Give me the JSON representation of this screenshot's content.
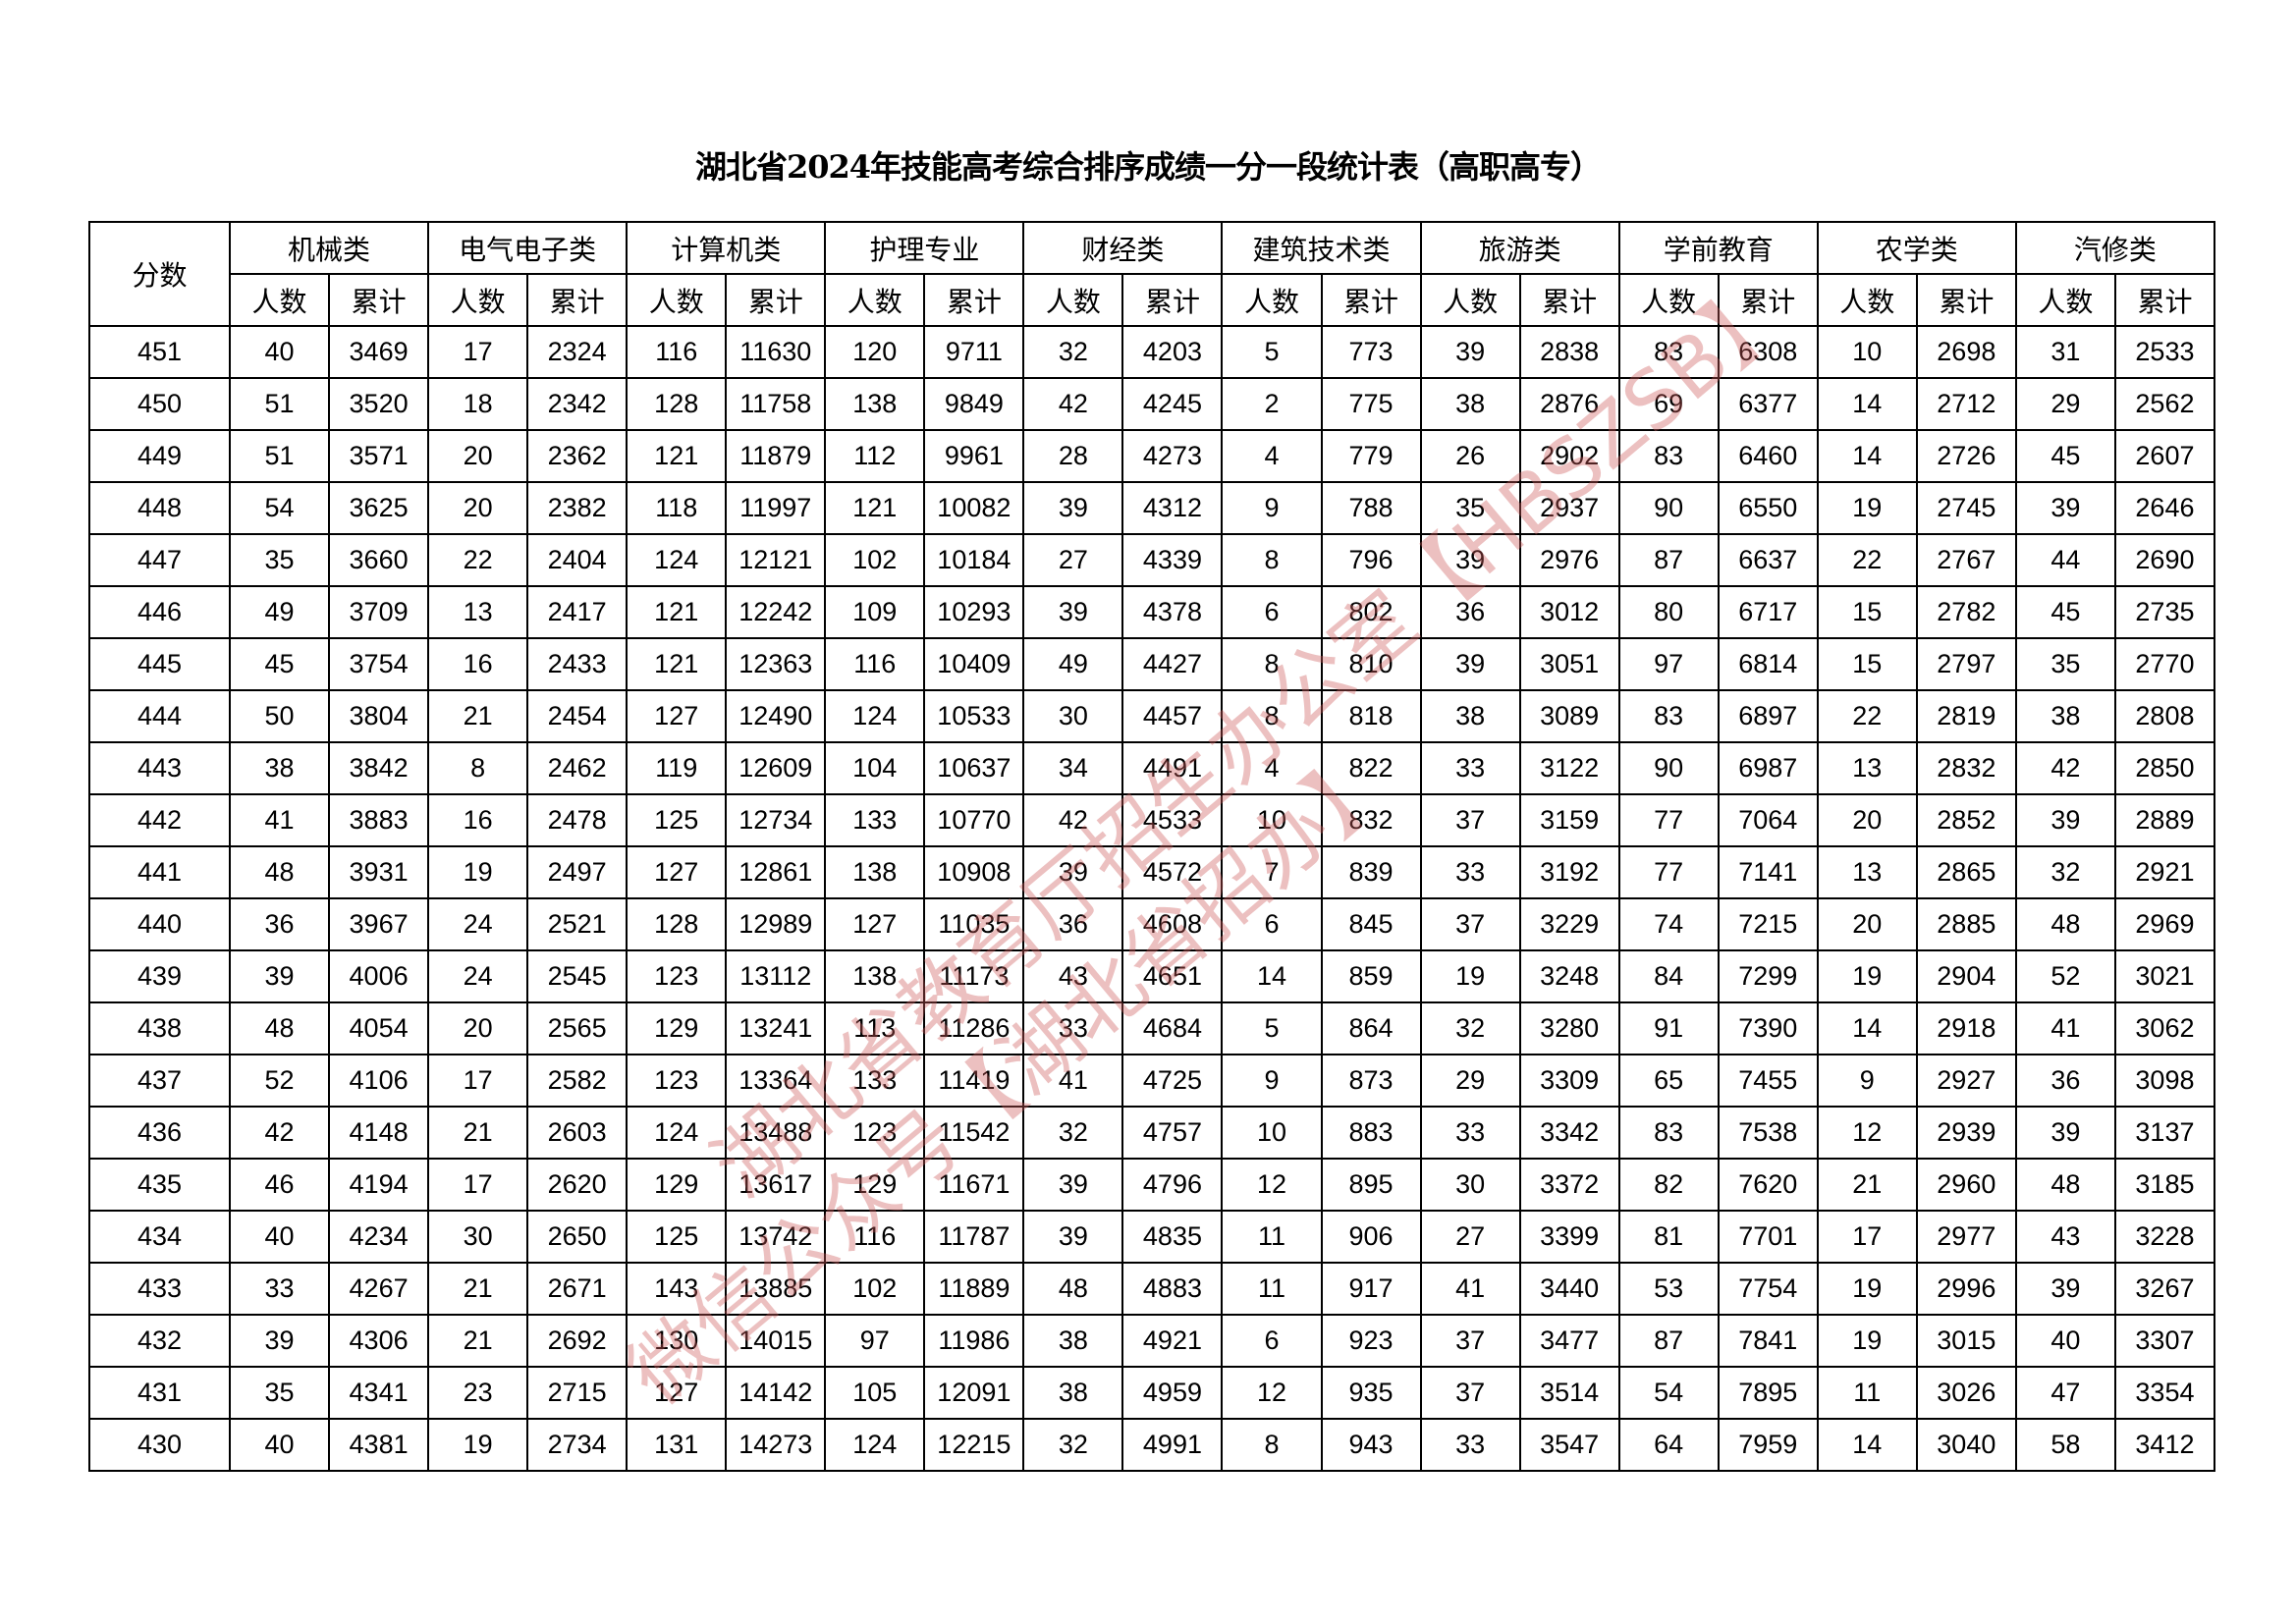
{
  "title": "湖北省2024年技能高考综合排序成绩一分一段统计表（高职高专）",
  "score_header": "分数",
  "categories": [
    "机械类",
    "电气电子类",
    "计算机类",
    "护理专业",
    "财经类",
    "建筑技术类",
    "旅游类",
    "学前教育",
    "农学类",
    "汽修类"
  ],
  "sub_headers": [
    "人数",
    "累计"
  ],
  "rows": [
    [
      "451",
      "40",
      "3469",
      "17",
      "2324",
      "116",
      "11630",
      "120",
      "9711",
      "32",
      "4203",
      "5",
      "773",
      "39",
      "2838",
      "83",
      "6308",
      "10",
      "2698",
      "31",
      "2533"
    ],
    [
      "450",
      "51",
      "3520",
      "18",
      "2342",
      "128",
      "11758",
      "138",
      "9849",
      "42",
      "4245",
      "2",
      "775",
      "38",
      "2876",
      "69",
      "6377",
      "14",
      "2712",
      "29",
      "2562"
    ],
    [
      "449",
      "51",
      "3571",
      "20",
      "2362",
      "121",
      "11879",
      "112",
      "9961",
      "28",
      "4273",
      "4",
      "779",
      "26",
      "2902",
      "83",
      "6460",
      "14",
      "2726",
      "45",
      "2607"
    ],
    [
      "448",
      "54",
      "3625",
      "20",
      "2382",
      "118",
      "11997",
      "121",
      "10082",
      "39",
      "4312",
      "9",
      "788",
      "35",
      "2937",
      "90",
      "6550",
      "19",
      "2745",
      "39",
      "2646"
    ],
    [
      "447",
      "35",
      "3660",
      "22",
      "2404",
      "124",
      "12121",
      "102",
      "10184",
      "27",
      "4339",
      "8",
      "796",
      "39",
      "2976",
      "87",
      "6637",
      "22",
      "2767",
      "44",
      "2690"
    ],
    [
      "446",
      "49",
      "3709",
      "13",
      "2417",
      "121",
      "12242",
      "109",
      "10293",
      "39",
      "4378",
      "6",
      "802",
      "36",
      "3012",
      "80",
      "6717",
      "15",
      "2782",
      "45",
      "2735"
    ],
    [
      "445",
      "45",
      "3754",
      "16",
      "2433",
      "121",
      "12363",
      "116",
      "10409",
      "49",
      "4427",
      "8",
      "810",
      "39",
      "3051",
      "97",
      "6814",
      "15",
      "2797",
      "35",
      "2770"
    ],
    [
      "444",
      "50",
      "3804",
      "21",
      "2454",
      "127",
      "12490",
      "124",
      "10533",
      "30",
      "4457",
      "8",
      "818",
      "38",
      "3089",
      "83",
      "6897",
      "22",
      "2819",
      "38",
      "2808"
    ],
    [
      "443",
      "38",
      "3842",
      "8",
      "2462",
      "119",
      "12609",
      "104",
      "10637",
      "34",
      "4491",
      "4",
      "822",
      "33",
      "3122",
      "90",
      "6987",
      "13",
      "2832",
      "42",
      "2850"
    ],
    [
      "442",
      "41",
      "3883",
      "16",
      "2478",
      "125",
      "12734",
      "133",
      "10770",
      "42",
      "4533",
      "10",
      "832",
      "37",
      "3159",
      "77",
      "7064",
      "20",
      "2852",
      "39",
      "2889"
    ],
    [
      "441",
      "48",
      "3931",
      "19",
      "2497",
      "127",
      "12861",
      "138",
      "10908",
      "39",
      "4572",
      "7",
      "839",
      "33",
      "3192",
      "77",
      "7141",
      "13",
      "2865",
      "32",
      "2921"
    ],
    [
      "440",
      "36",
      "3967",
      "24",
      "2521",
      "128",
      "12989",
      "127",
      "11035",
      "36",
      "4608",
      "6",
      "845",
      "37",
      "3229",
      "74",
      "7215",
      "20",
      "2885",
      "48",
      "2969"
    ],
    [
      "439",
      "39",
      "4006",
      "24",
      "2545",
      "123",
      "13112",
      "138",
      "11173",
      "43",
      "4651",
      "14",
      "859",
      "19",
      "3248",
      "84",
      "7299",
      "19",
      "2904",
      "52",
      "3021"
    ],
    [
      "438",
      "48",
      "4054",
      "20",
      "2565",
      "129",
      "13241",
      "113",
      "11286",
      "33",
      "4684",
      "5",
      "864",
      "32",
      "3280",
      "91",
      "7390",
      "14",
      "2918",
      "41",
      "3062"
    ],
    [
      "437",
      "52",
      "4106",
      "17",
      "2582",
      "123",
      "13364",
      "133",
      "11419",
      "41",
      "4725",
      "9",
      "873",
      "29",
      "3309",
      "65",
      "7455",
      "9",
      "2927",
      "36",
      "3098"
    ],
    [
      "436",
      "42",
      "4148",
      "21",
      "2603",
      "124",
      "13488",
      "123",
      "11542",
      "32",
      "4757",
      "10",
      "883",
      "33",
      "3342",
      "83",
      "7538",
      "12",
      "2939",
      "39",
      "3137"
    ],
    [
      "435",
      "46",
      "4194",
      "17",
      "2620",
      "129",
      "13617",
      "129",
      "11671",
      "39",
      "4796",
      "12",
      "895",
      "30",
      "3372",
      "82",
      "7620",
      "21",
      "2960",
      "48",
      "3185"
    ],
    [
      "434",
      "40",
      "4234",
      "30",
      "2650",
      "125",
      "13742",
      "116",
      "11787",
      "39",
      "4835",
      "11",
      "906",
      "27",
      "3399",
      "81",
      "7701",
      "17",
      "2977",
      "43",
      "3228"
    ],
    [
      "433",
      "33",
      "4267",
      "21",
      "2671",
      "143",
      "13885",
      "102",
      "11889",
      "48",
      "4883",
      "11",
      "917",
      "41",
      "3440",
      "53",
      "7754",
      "19",
      "2996",
      "39",
      "3267"
    ],
    [
      "432",
      "39",
      "4306",
      "21",
      "2692",
      "130",
      "14015",
      "97",
      "11986",
      "38",
      "4921",
      "6",
      "923",
      "37",
      "3477",
      "87",
      "7841",
      "19",
      "3015",
      "40",
      "3307"
    ],
    [
      "431",
      "35",
      "4341",
      "23",
      "2715",
      "127",
      "14142",
      "105",
      "12091",
      "38",
      "4959",
      "12",
      "935",
      "37",
      "3514",
      "54",
      "7895",
      "11",
      "3026",
      "47",
      "3354"
    ],
    [
      "430",
      "40",
      "4381",
      "19",
      "2734",
      "131",
      "14273",
      "124",
      "12215",
      "32",
      "4991",
      "8",
      "943",
      "33",
      "3547",
      "64",
      "7959",
      "14",
      "3040",
      "58",
      "3412"
    ]
  ],
  "watermark": {
    "line1": "湖北省教育厅招生办公室【HBSZSB】",
    "line2": "微信公众号【湖北省招办】",
    "color": "#cd5a5a"
  }
}
